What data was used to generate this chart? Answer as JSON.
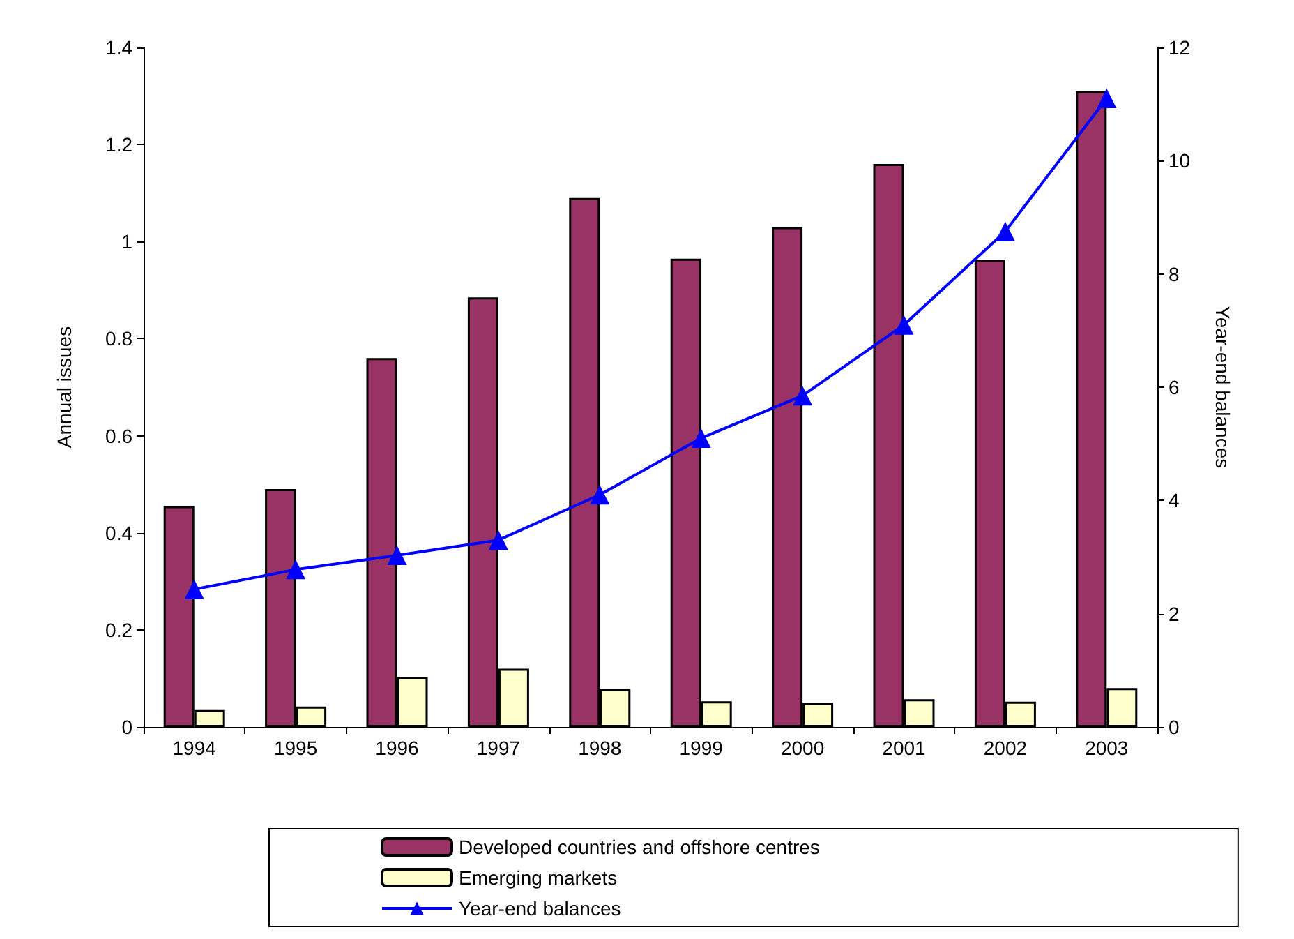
{
  "chart_data": {
    "type": "bar",
    "categories": [
      "1994",
      "1995",
      "1996",
      "1997",
      "1998",
      "1999",
      "2000",
      "2001",
      "2002",
      "2003"
    ],
    "ylabel": "Annual issues",
    "y2label": "Year-end balances",
    "series": [
      {
        "name": "Developed countries and offshore centres",
        "color": "#993366",
        "values": [
          0.455,
          0.49,
          0.76,
          0.885,
          1.09,
          0.965,
          1.03,
          1.16,
          0.963,
          1.31
        ]
      },
      {
        "name": "Emerging markets",
        "color": "#ffffcc",
        "values": [
          0.035,
          0.042,
          0.103,
          0.12,
          0.078,
          0.053,
          0.05,
          0.057,
          0.052,
          0.08
        ]
      },
      {
        "name": "Year-end balances",
        "type": "line",
        "axis": "y2",
        "color": "#0000ff",
        "marker": "triangle",
        "values": [
          2.43,
          2.78,
          3.03,
          3.3,
          4.1,
          5.1,
          5.85,
          7.1,
          8.75,
          11.1
        ]
      }
    ],
    "ylim": [
      0,
      1.4
    ],
    "yticks": [
      0,
      0.2,
      0.4,
      0.6,
      0.8,
      1,
      1.2,
      1.4
    ],
    "y2lim": [
      0,
      12
    ],
    "y2ticks": [
      0,
      2,
      4,
      6,
      8,
      10,
      12
    ],
    "grid": false,
    "legend": "bottom"
  }
}
